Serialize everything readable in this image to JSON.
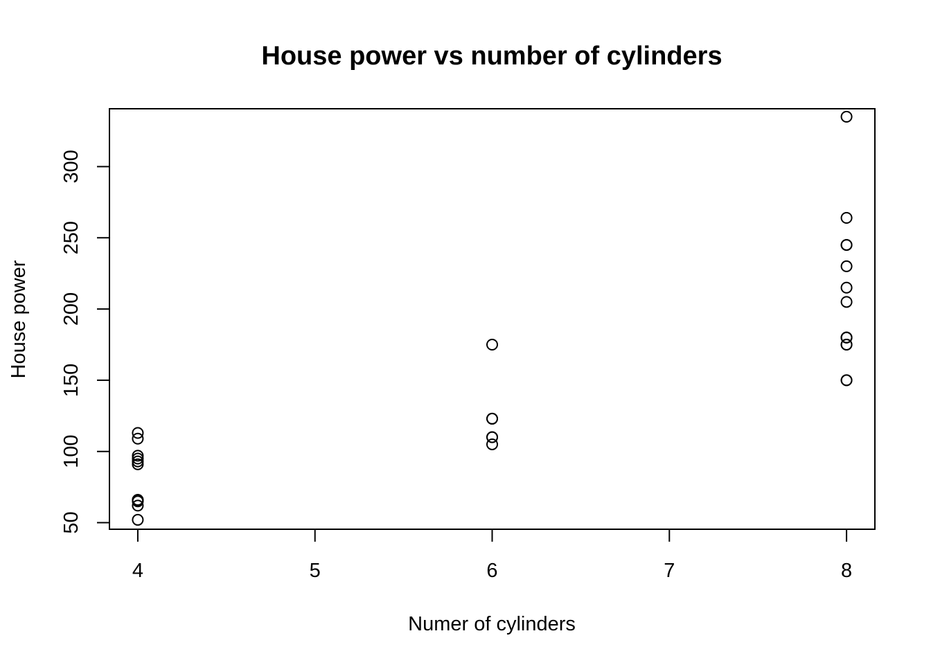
{
  "chart_data": {
    "type": "scatter",
    "title": "House power vs number of cylinders",
    "xlabel": "Numer of cylinders",
    "ylabel": "House power",
    "xlim": [
      3.84,
      8.16
    ],
    "ylim": [
      45.4,
      340.6
    ],
    "x_ticks": [
      4,
      5,
      6,
      7,
      8
    ],
    "y_ticks": [
      50,
      100,
      150,
      200,
      250,
      300
    ],
    "grid": false,
    "points": [
      {
        "x": 4,
        "y": 52
      },
      {
        "x": 4,
        "y": 62
      },
      {
        "x": 4,
        "y": 65
      },
      {
        "x": 4,
        "y": 66
      },
      {
        "x": 4,
        "y": 66
      },
      {
        "x": 4,
        "y": 91
      },
      {
        "x": 4,
        "y": 93
      },
      {
        "x": 4,
        "y": 95
      },
      {
        "x": 4,
        "y": 97
      },
      {
        "x": 4,
        "y": 109
      },
      {
        "x": 4,
        "y": 113
      },
      {
        "x": 6,
        "y": 105
      },
      {
        "x": 6,
        "y": 110
      },
      {
        "x": 6,
        "y": 110
      },
      {
        "x": 6,
        "y": 123
      },
      {
        "x": 6,
        "y": 123
      },
      {
        "x": 6,
        "y": 175
      },
      {
        "x": 8,
        "y": 150
      },
      {
        "x": 8,
        "y": 150
      },
      {
        "x": 8,
        "y": 175
      },
      {
        "x": 8,
        "y": 175
      },
      {
        "x": 8,
        "y": 180
      },
      {
        "x": 8,
        "y": 180
      },
      {
        "x": 8,
        "y": 180
      },
      {
        "x": 8,
        "y": 205
      },
      {
        "x": 8,
        "y": 215
      },
      {
        "x": 8,
        "y": 230
      },
      {
        "x": 8,
        "y": 245
      },
      {
        "x": 8,
        "y": 245
      },
      {
        "x": 8,
        "y": 264
      },
      {
        "x": 8,
        "y": 335
      }
    ]
  }
}
